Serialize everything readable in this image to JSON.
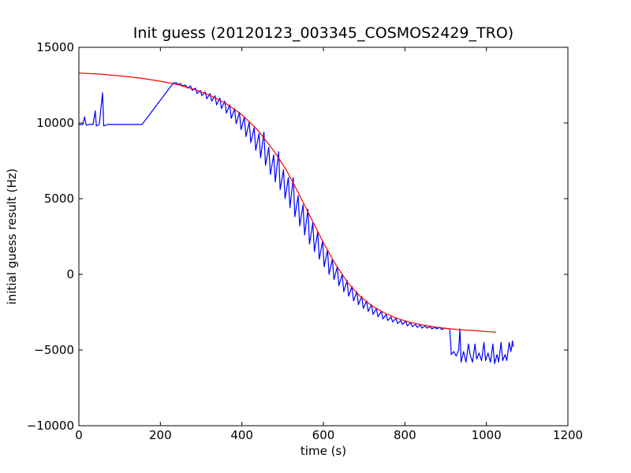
{
  "chart_data": {
    "type": "line",
    "title": "Init guess (20120123_003345_COSMOS2429_TRO)",
    "xlabel": "time (s)",
    "ylabel": "initial guess result (Hz)",
    "xlim": [
      0,
      1200
    ],
    "ylim": [
      -10000,
      15000
    ],
    "xticks": [
      0,
      200,
      400,
      600,
      800,
      1000,
      1200
    ],
    "xtick_labels": [
      "0",
      "200",
      "400",
      "600",
      "800",
      "1000",
      "1200"
    ],
    "yticks": [
      -10000,
      -5000,
      0,
      5000,
      10000,
      15000
    ],
    "ytick_labels": [
      "−10000",
      "−5000",
      "0",
      "5000",
      "10000",
      "15000"
    ],
    "grid": false,
    "legend": "none",
    "series": [
      {
        "color": "#0000ff",
        "points": [
          [
            0,
            9900
          ],
          [
            10,
            9900
          ],
          [
            14,
            10400
          ],
          [
            18,
            9850
          ],
          [
            25,
            9900
          ],
          [
            35,
            9900
          ],
          [
            40,
            10800
          ],
          [
            43,
            9800
          ],
          [
            50,
            9900
          ],
          [
            58,
            12000
          ],
          [
            61,
            9800
          ],
          [
            70,
            9900
          ],
          [
            100,
            9900
          ],
          [
            155,
            9900
          ],
          [
            232,
            12650
          ],
          [
            240,
            12650
          ],
          [
            242,
            12550
          ],
          [
            250,
            12600
          ],
          [
            254,
            12450
          ],
          [
            262,
            12500
          ],
          [
            266,
            12300
          ],
          [
            274,
            12450
          ],
          [
            278,
            12150
          ],
          [
            286,
            12300
          ],
          [
            290,
            11950
          ],
          [
            298,
            12150
          ],
          [
            302,
            11800
          ],
          [
            310,
            12050
          ],
          [
            314,
            11600
          ],
          [
            322,
            11950
          ],
          [
            326,
            11450
          ],
          [
            334,
            11800
          ],
          [
            338,
            11200
          ],
          [
            346,
            11650
          ],
          [
            350,
            10950
          ],
          [
            358,
            11450
          ],
          [
            362,
            10650
          ],
          [
            370,
            11200
          ],
          [
            374,
            10300
          ],
          [
            382,
            10950
          ],
          [
            386,
            9950
          ],
          [
            394,
            10700
          ],
          [
            398,
            9550
          ],
          [
            406,
            10400
          ],
          [
            410,
            9100
          ],
          [
            418,
            10050
          ],
          [
            422,
            8700
          ],
          [
            430,
            9700
          ],
          [
            434,
            8200
          ],
          [
            442,
            9300
          ],
          [
            446,
            7700
          ],
          [
            454,
            9400
          ],
          [
            458,
            7200
          ],
          [
            466,
            8400
          ],
          [
            470,
            6600
          ],
          [
            478,
            7900
          ],
          [
            482,
            6100
          ],
          [
            490,
            8100
          ],
          [
            494,
            5600
          ],
          [
            502,
            6900
          ],
          [
            506,
            5000
          ],
          [
            514,
            6400
          ],
          [
            518,
            4400
          ],
          [
            526,
            6400
          ],
          [
            530,
            3800
          ],
          [
            538,
            5200
          ],
          [
            542,
            3200
          ],
          [
            550,
            4600
          ],
          [
            554,
            2600
          ],
          [
            562,
            4300
          ],
          [
            566,
            2000
          ],
          [
            574,
            3400
          ],
          [
            578,
            1500
          ],
          [
            586,
            2800
          ],
          [
            590,
            1000
          ],
          [
            598,
            2200
          ],
          [
            602,
            500
          ],
          [
            610,
            1600
          ],
          [
            614,
            0
          ],
          [
            622,
            1000
          ],
          [
            626,
            -350
          ],
          [
            634,
            500
          ],
          [
            638,
            -750
          ],
          [
            646,
            0
          ],
          [
            650,
            -1150
          ],
          [
            658,
            -400
          ],
          [
            662,
            -1450
          ],
          [
            670,
            -800
          ],
          [
            674,
            -1750
          ],
          [
            682,
            -1150
          ],
          [
            686,
            -2000
          ],
          [
            694,
            -1450
          ],
          [
            698,
            -2250
          ],
          [
            706,
            -1750
          ],
          [
            710,
            -2450
          ],
          [
            718,
            -2000
          ],
          [
            722,
            -2650
          ],
          [
            730,
            -2250
          ],
          [
            734,
            -2800
          ],
          [
            742,
            -2450
          ],
          [
            746,
            -2950
          ],
          [
            754,
            -2650
          ],
          [
            758,
            -3050
          ],
          [
            766,
            -2800
          ],
          [
            770,
            -3150
          ],
          [
            778,
            -2900
          ],
          [
            782,
            -3250
          ],
          [
            790,
            -3050
          ],
          [
            794,
            -3300
          ],
          [
            802,
            -3100
          ],
          [
            806,
            -3400
          ],
          [
            814,
            -3200
          ],
          [
            818,
            -3450
          ],
          [
            826,
            -3300
          ],
          [
            830,
            -3500
          ],
          [
            838,
            -3350
          ],
          [
            842,
            -3550
          ],
          [
            850,
            -3400
          ],
          [
            854,
            -3550
          ],
          [
            862,
            -3450
          ],
          [
            866,
            -3600
          ],
          [
            874,
            -3500
          ],
          [
            878,
            -3600
          ],
          [
            886,
            -3500
          ],
          [
            890,
            -3650
          ],
          [
            898,
            -3550
          ],
          [
            910,
            -3600
          ],
          [
            914,
            -5300
          ],
          [
            920,
            -5100
          ],
          [
            926,
            -5400
          ],
          [
            932,
            -5000
          ],
          [
            935,
            -3600
          ],
          [
            938,
            -5800
          ],
          [
            944,
            -5100
          ],
          [
            950,
            -5800
          ],
          [
            956,
            -4600
          ],
          [
            960,
            -5300
          ],
          [
            966,
            -5800
          ],
          [
            972,
            -4600
          ],
          [
            976,
            -5600
          ],
          [
            982,
            -5200
          ],
          [
            988,
            -5700
          ],
          [
            994,
            -4500
          ],
          [
            998,
            -5700
          ],
          [
            1004,
            -5200
          ],
          [
            1010,
            -5800
          ],
          [
            1016,
            -4600
          ],
          [
            1020,
            -5900
          ],
          [
            1026,
            -5300
          ],
          [
            1030,
            -5800
          ],
          [
            1036,
            -4500
          ],
          [
            1040,
            -5700
          ],
          [
            1046,
            -5300
          ],
          [
            1050,
            -5700
          ],
          [
            1056,
            -4500
          ],
          [
            1060,
            -5100
          ],
          [
            1062,
            -4800
          ],
          [
            1064,
            -4400
          ],
          [
            1066,
            -4800
          ]
        ]
      },
      {
        "color": "#ff0000",
        "points": [
          [
            0,
            13300
          ],
          [
            50,
            13230
          ],
          [
            100,
            13120
          ],
          [
            150,
            12970
          ],
          [
            200,
            12760
          ],
          [
            240,
            12550
          ],
          [
            280,
            12250
          ],
          [
            320,
            11850
          ],
          [
            360,
            11300
          ],
          [
            400,
            10550
          ],
          [
            440,
            9500
          ],
          [
            480,
            8100
          ],
          [
            510,
            6850
          ],
          [
            540,
            5300
          ],
          [
            570,
            3700
          ],
          [
            600,
            2100
          ],
          [
            630,
            650
          ],
          [
            660,
            -550
          ],
          [
            690,
            -1450
          ],
          [
            720,
            -2100
          ],
          [
            750,
            -2550
          ],
          [
            780,
            -2900
          ],
          [
            810,
            -3150
          ],
          [
            840,
            -3330
          ],
          [
            870,
            -3470
          ],
          [
            900,
            -3570
          ],
          [
            930,
            -3650
          ],
          [
            960,
            -3700
          ],
          [
            990,
            -3760
          ],
          [
            1024,
            -3820
          ]
        ]
      }
    ]
  }
}
